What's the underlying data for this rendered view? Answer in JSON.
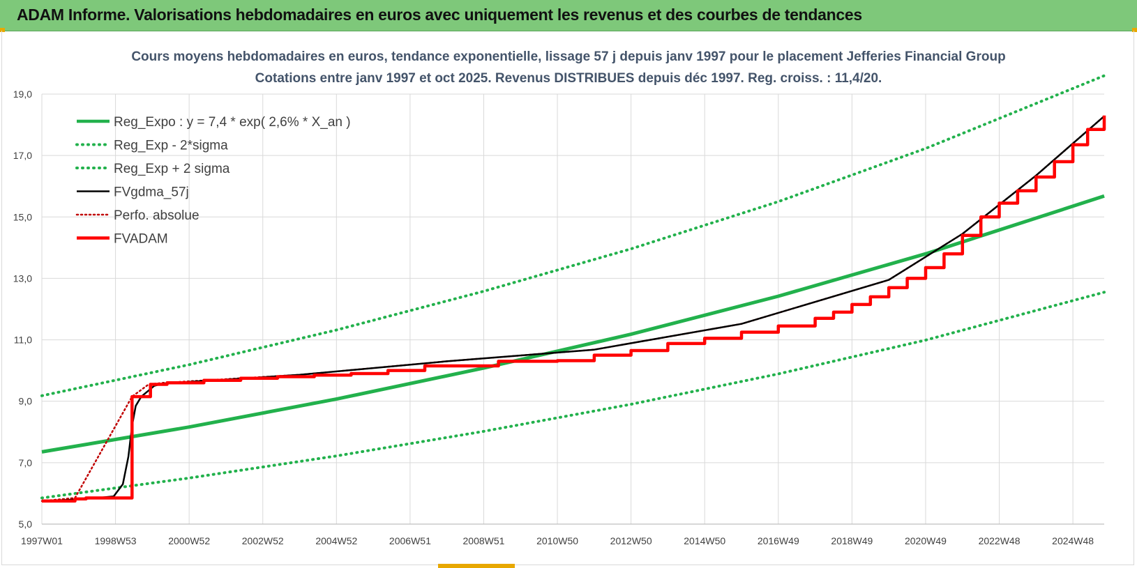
{
  "header": {
    "title": "ADAM Informe. Valorisations hebdomadaires en euros avec uniquement les revenus et des courbes de tendances"
  },
  "colors": {
    "banner": "#7ec87a",
    "accent": "#e8a800",
    "reg_expo": "#22b14c",
    "fvgdma": "#000000",
    "fvadam": "#ff0000",
    "perfo": "#c00000"
  },
  "chart_data": {
    "type": "line",
    "title": "Cours moyens hebdomadaires en euros, tendance exponentielle, lissage 57 j depuis janv 1997 pour le placement Jefferies Financial Group",
    "subtitle": "Cotations entre janv 1997 et oct 2025. Revenus DISTRIBUES depuis déc 1997. Reg. croiss. : 11,4/20.",
    "xlabel": "",
    "ylabel": "",
    "x_range": [
      1997.0,
      2025.85
    ],
    "ylim": [
      5.0,
      19.0
    ],
    "y_ticks": [
      "5,0",
      "7,0",
      "9,0",
      "11,0",
      "13,0",
      "15,0",
      "17,0",
      "19,0"
    ],
    "x_ticks": [
      {
        "label": "1997W01",
        "year": 1997.0
      },
      {
        "label": "1998W53",
        "year": 1999.0
      },
      {
        "label": "2000W52",
        "year": 2001.0
      },
      {
        "label": "2002W52",
        "year": 2003.0
      },
      {
        "label": "2004W52",
        "year": 2005.0
      },
      {
        "label": "2006W51",
        "year": 2007.0
      },
      {
        "label": "2008W51",
        "year": 2009.0
      },
      {
        "label": "2010W50",
        "year": 2011.0
      },
      {
        "label": "2012W50",
        "year": 2013.0
      },
      {
        "label": "2014W50",
        "year": 2015.0
      },
      {
        "label": "2016W49",
        "year": 2017.0
      },
      {
        "label": "2018W49",
        "year": 2019.0
      },
      {
        "label": "2020W49",
        "year": 2021.0
      },
      {
        "label": "2022W48",
        "year": 2023.0
      },
      {
        "label": "2024W48",
        "year": 2025.0
      }
    ],
    "grid": true,
    "legend_position": "top-left",
    "series": [
      {
        "name": "Reg_Expo : y = 7,4 * exp( 2,6% *  X_an )",
        "style": "solid-thick",
        "color": "#22b14c",
        "x": [
          1997.0,
          2001.0,
          2005.0,
          2009.0,
          2013.0,
          2017.0,
          2021.0,
          2025.85
        ],
        "y": [
          7.35,
          8.16,
          9.07,
          10.08,
          11.18,
          12.42,
          13.8,
          15.68
        ]
      },
      {
        "name": "Reg_Exp - 2*sigma",
        "style": "dotted",
        "color": "#22b14c",
        "x": [
          1997.0,
          2001.0,
          2005.0,
          2009.0,
          2013.0,
          2017.0,
          2021.0,
          2025.85
        ],
        "y": [
          5.85,
          6.5,
          7.22,
          8.02,
          8.9,
          9.89,
          10.99,
          12.55
        ]
      },
      {
        "name": "Reg_Exp + 2 sigma",
        "style": "dotted",
        "color": "#22b14c",
        "x": [
          1997.0,
          2001.0,
          2005.0,
          2009.0,
          2013.0,
          2017.0,
          2021.0,
          2025.85
        ],
        "y": [
          9.18,
          10.19,
          11.32,
          12.58,
          13.96,
          15.5,
          17.23,
          19.6
        ]
      },
      {
        "name": "FVgdma_57j",
        "style": "solid",
        "color": "#000000",
        "x": [
          1997.0,
          1997.9,
          1998.5,
          1998.95,
          1999.2,
          1999.35,
          1999.45,
          1999.55,
          1999.7,
          1999.9,
          2000.05,
          2000.3,
          2004.0,
          2008.0,
          2012.0,
          2016.0,
          2020.0,
          2022.0,
          2024.0,
          2025.85
        ],
        "y": [
          5.75,
          5.8,
          5.85,
          5.9,
          6.3,
          7.2,
          8.2,
          8.85,
          9.15,
          9.35,
          9.5,
          9.58,
          9.86,
          10.3,
          10.68,
          11.52,
          12.95,
          14.45,
          16.35,
          18.28
        ]
      },
      {
        "name": "Perfo. absolue",
        "style": "dotted",
        "color": "#c00000",
        "hidden_under": "FVADAM",
        "x": [
          1997.0,
          1997.9,
          1999.45,
          1999.9,
          2000.3,
          2004.0,
          2008.0,
          2012.0,
          2016.0,
          2020.0,
          2022.0,
          2024.0,
          2025.85
        ],
        "y": [
          5.75,
          5.85,
          9.15,
          9.55,
          9.6,
          9.86,
          10.3,
          10.68,
          11.52,
          12.95,
          14.45,
          16.35,
          18.28
        ]
      },
      {
        "name": "FVADAM",
        "style": "step-thick",
        "color": "#ff0000",
        "x": [
          1997.0,
          1997.9,
          1998.2,
          1999.45,
          1999.95,
          2000.4,
          2001.4,
          2002.4,
          2003.4,
          2004.4,
          2005.4,
          2006.4,
          2007.4,
          2009.4,
          2011.0,
          2012.0,
          2013.0,
          2014.0,
          2015.0,
          2016.0,
          2017.0,
          2018.0,
          2018.5,
          2019.0,
          2019.5,
          2020.0,
          2020.5,
          2021.0,
          2021.5,
          2022.0,
          2022.5,
          2023.0,
          2023.5,
          2024.0,
          2024.5,
          2025.0,
          2025.4,
          2025.85
        ],
        "y": [
          5.75,
          5.82,
          5.85,
          9.15,
          9.55,
          9.6,
          9.68,
          9.75,
          9.8,
          9.85,
          9.9,
          10.0,
          10.15,
          10.3,
          10.32,
          10.5,
          10.65,
          10.88,
          11.05,
          11.25,
          11.45,
          11.7,
          11.9,
          12.15,
          12.4,
          12.7,
          13.0,
          13.35,
          13.8,
          14.4,
          15.0,
          15.45,
          15.85,
          16.3,
          16.8,
          17.35,
          17.85,
          18.3
        ]
      }
    ]
  }
}
